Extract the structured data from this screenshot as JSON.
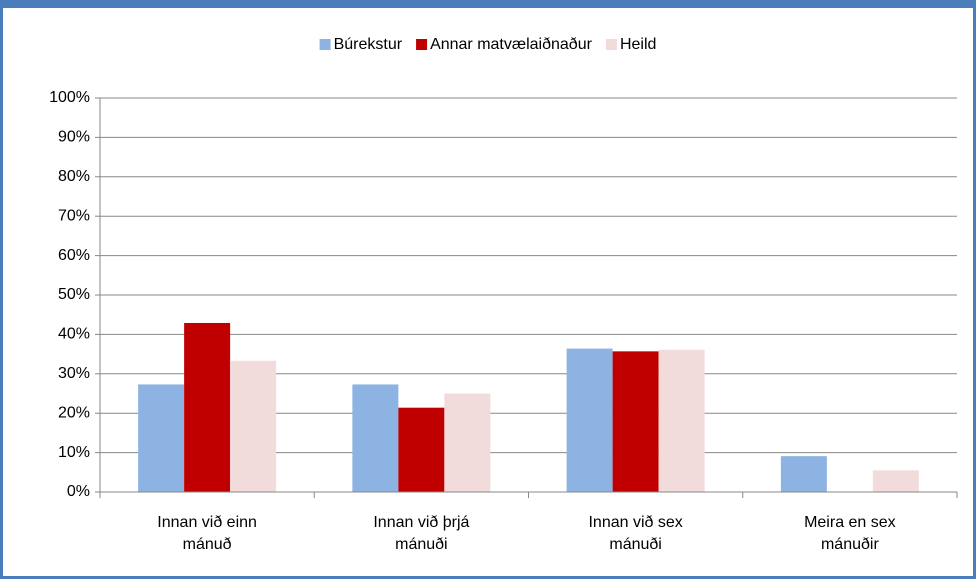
{
  "chart_data": {
    "type": "bar",
    "categories": [
      "Innan við einn mánuð",
      "Innan við þrjá mánuði",
      "Innan við sex mánuði",
      "Meira en sex mánuðir"
    ],
    "series": [
      {
        "name": "Búrekstur",
        "color": "#8db3e2",
        "values": [
          27.3,
          27.3,
          36.4,
          9.1
        ]
      },
      {
        "name": "Annar matvælaiðnaður",
        "color": "#c00000",
        "values": [
          42.9,
          21.4,
          35.7,
          0
        ]
      },
      {
        "name": "Heild",
        "color": "#f2dcdb",
        "values": [
          33.3,
          25,
          36.1,
          5.5
        ]
      }
    ],
    "ylim": [
      0,
      100
    ],
    "yticks": [
      {
        "value": 0,
        "label": "0%"
      },
      {
        "value": 10,
        "label": "10%"
      },
      {
        "value": 20,
        "label": "20%"
      },
      {
        "value": 30,
        "label": "30%"
      },
      {
        "value": 40,
        "label": "40%"
      },
      {
        "value": 50,
        "label": "50%"
      },
      {
        "value": 60,
        "label": "60%"
      },
      {
        "value": 70,
        "label": "70%"
      },
      {
        "value": 80,
        "label": "80%"
      },
      {
        "value": 90,
        "label": "90%"
      },
      {
        "value": 100,
        "label": "100%"
      }
    ],
    "grid": true,
    "legend": "top"
  }
}
